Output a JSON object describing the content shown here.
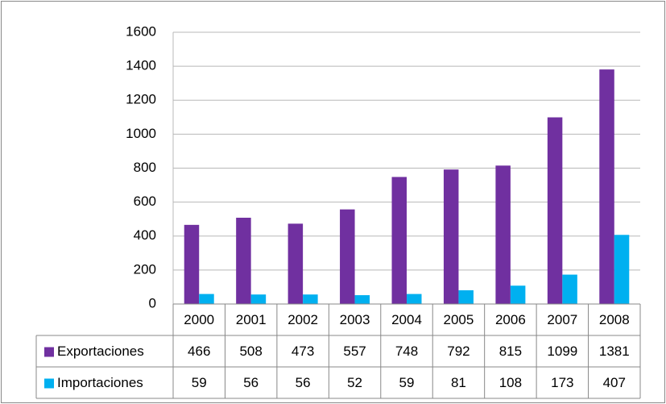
{
  "chart_data": {
    "type": "bar",
    "categories": [
      "2000",
      "2001",
      "2002",
      "2003",
      "2004",
      "2005",
      "2006",
      "2007",
      "2008"
    ],
    "series": [
      {
        "name": "Exportaciones",
        "color": "#7030a0",
        "values": [
          466,
          508,
          473,
          557,
          748,
          792,
          815,
          1099,
          1381
        ]
      },
      {
        "name": "Importaciones",
        "color": "#00b0f0",
        "values": [
          59,
          56,
          56,
          52,
          59,
          81,
          108,
          173,
          407
        ]
      }
    ],
    "ylim": [
      0,
      1600
    ],
    "yticks": [
      0,
      200,
      400,
      600,
      800,
      1000,
      1200,
      1400,
      1600
    ],
    "grid": true,
    "data_table": true
  }
}
